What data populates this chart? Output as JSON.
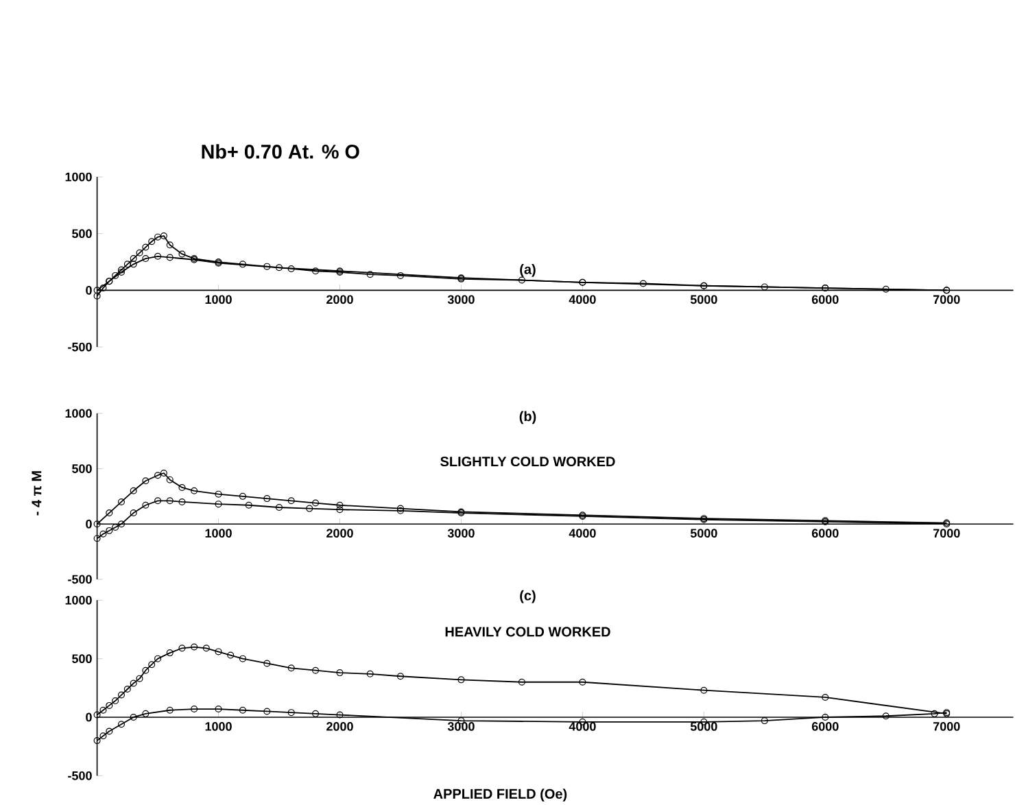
{
  "chart_data": [
    {
      "type": "line",
      "title": "(a)",
      "annotations": [
        "Nb+ 0.70 At. % O"
      ],
      "xlim": [
        0,
        7550
      ],
      "xticks": [
        1000,
        2000,
        3000,
        4000,
        5000,
        6000,
        7000
      ],
      "ylim": [
        -500,
        1000
      ],
      "yticks": [
        -500,
        0,
        500,
        1000
      ],
      "marker": "circle",
      "grid": false,
      "series": [
        {
          "color": "#000000",
          "x": [
            0,
            50,
            100,
            150,
            200,
            250,
            300,
            350,
            400,
            450,
            500,
            550,
            600,
            700,
            800,
            1000,
            1200,
            1400,
            1600,
            1800,
            2000,
            2250,
            2500,
            3000,
            3500,
            4000,
            4500,
            5000,
            5500,
            6000,
            6500,
            7000
          ],
          "values": [
            -50,
            20,
            80,
            130,
            180,
            230,
            280,
            330,
            380,
            430,
            470,
            480,
            400,
            320,
            280,
            250,
            230,
            210,
            190,
            170,
            160,
            140,
            130,
            100,
            90,
            70,
            60,
            40,
            30,
            20,
            10,
            0
          ]
        },
        {
          "color": "#000000",
          "x": [
            0,
            100,
            200,
            300,
            400,
            500,
            600,
            800,
            1000,
            1500,
            2000,
            3000,
            4000,
            5000,
            6000,
            7000
          ],
          "values": [
            0,
            80,
            160,
            230,
            280,
            300,
            290,
            270,
            240,
            200,
            170,
            110,
            70,
            40,
            20,
            0
          ]
        }
      ]
    },
    {
      "type": "line",
      "title": "(b)",
      "subtitle": "SLIGHTLY COLD WORKED",
      "ylabel": "- 4 π M",
      "xlim": [
        0,
        7550
      ],
      "xticks": [
        1000,
        2000,
        3000,
        4000,
        5000,
        6000,
        7000
      ],
      "ylim": [
        -500,
        1000
      ],
      "yticks": [
        -500,
        0,
        500,
        1000
      ],
      "marker": "circle",
      "grid": false,
      "series": [
        {
          "color": "#000000",
          "x": [
            0,
            100,
            200,
            300,
            400,
            500,
            550,
            600,
            700,
            800,
            1000,
            1200,
            1400,
            1600,
            1800,
            2000,
            2500,
            3000,
            4000,
            5000,
            6000,
            7000
          ],
          "values": [
            0,
            100,
            200,
            300,
            390,
            440,
            460,
            400,
            330,
            300,
            270,
            250,
            230,
            210,
            190,
            170,
            140,
            110,
            80,
            50,
            30,
            10
          ]
        },
        {
          "color": "#000000",
          "x": [
            0,
            50,
            100,
            150,
            200,
            300,
            400,
            500,
            600,
            700,
            1000,
            1250,
            1500,
            1750,
            2000,
            2500,
            3000,
            4000,
            5000,
            6000,
            7000
          ],
          "values": [
            -130,
            -90,
            -60,
            -30,
            0,
            100,
            170,
            210,
            210,
            200,
            180,
            170,
            150,
            140,
            130,
            120,
            100,
            70,
            40,
            20,
            0
          ]
        }
      ]
    },
    {
      "type": "line",
      "title": "(c)",
      "subtitle": "HEAVILY COLD WORKED",
      "xlabel": "APPLIED FIELD (Oe)",
      "xlim": [
        0,
        7550
      ],
      "xticks": [
        1000,
        2000,
        3000,
        4000,
        5000,
        6000,
        7000
      ],
      "ylim": [
        -500,
        1000
      ],
      "yticks": [
        -500,
        0,
        500,
        1000
      ],
      "marker": "circle",
      "grid": false,
      "series": [
        {
          "color": "#000000",
          "x": [
            0,
            50,
            100,
            150,
            200,
            250,
            300,
            350,
            400,
            450,
            500,
            600,
            700,
            800,
            900,
            1000,
            1100,
            1200,
            1400,
            1600,
            1800,
            2000,
            2250,
            2500,
            3000,
            3500,
            4000,
            5000,
            6000,
            7000
          ],
          "values": [
            20,
            60,
            100,
            140,
            190,
            240,
            290,
            330,
            400,
            450,
            500,
            550,
            590,
            600,
            590,
            560,
            530,
            500,
            460,
            420,
            400,
            380,
            370,
            350,
            320,
            300,
            300,
            230,
            170,
            30
          ]
        },
        {
          "color": "#000000",
          "x": [
            0,
            50,
            100,
            200,
            300,
            400,
            600,
            800,
            1000,
            1200,
            1400,
            1600,
            1800,
            2000,
            3000,
            4000,
            5000,
            5500,
            6000,
            6500,
            6900,
            7000
          ],
          "values": [
            -200,
            -160,
            -120,
            -60,
            0,
            30,
            60,
            70,
            70,
            60,
            50,
            40,
            30,
            20,
            -30,
            -40,
            -40,
            -30,
            0,
            10,
            30,
            40
          ]
        }
      ]
    }
  ]
}
